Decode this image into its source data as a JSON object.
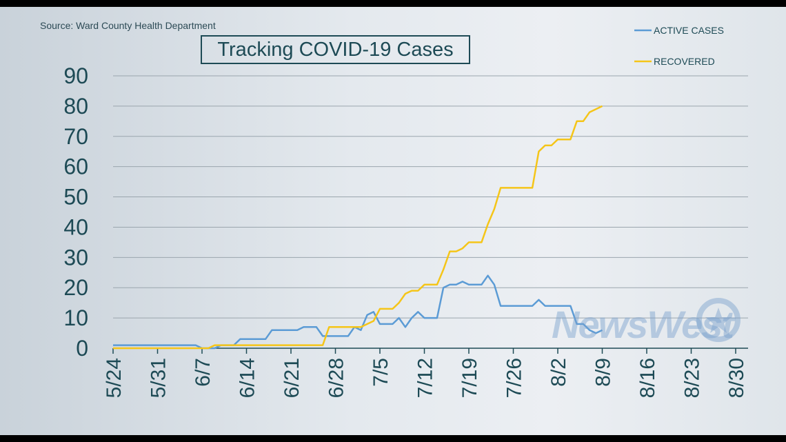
{
  "source": "Source: Ward County Health Department",
  "title": "Tracking COVID-19 Cases",
  "watermark": "NewsWest",
  "chart_data": {
    "type": "line",
    "title": "Tracking COVID-19 Cases",
    "xlabel": "",
    "ylabel": "",
    "ylim": [
      0,
      90
    ],
    "yticks": [
      0,
      10,
      20,
      30,
      40,
      50,
      60,
      70,
      80,
      90
    ],
    "xticks": [
      "5/24",
      "5/31",
      "6/7",
      "6/14",
      "6/21",
      "6/28",
      "7/5",
      "7/12",
      "7/19",
      "7/26",
      "8/2",
      "8/9",
      "8/16",
      "8/23",
      "8/30"
    ],
    "x_unit": "days since 5/24",
    "xlim": [
      0,
      98
    ],
    "grid": true,
    "legend_position": "top-right",
    "series": [
      {
        "name": "ACTIVE CASES",
        "color": "#5b9bd5",
        "points": [
          [
            0,
            1
          ],
          [
            13,
            1
          ],
          [
            14,
            0
          ],
          [
            16,
            0
          ],
          [
            17,
            1
          ],
          [
            19,
            1
          ],
          [
            20,
            3
          ],
          [
            24,
            3
          ],
          [
            25,
            6
          ],
          [
            29,
            6
          ],
          [
            30,
            7
          ],
          [
            32,
            7
          ],
          [
            33,
            4
          ],
          [
            37,
            4
          ],
          [
            38,
            7
          ],
          [
            39,
            6
          ],
          [
            40,
            11
          ],
          [
            41,
            12
          ],
          [
            42,
            8
          ],
          [
            44,
            8
          ],
          [
            45,
            10
          ],
          [
            46,
            7
          ],
          [
            47,
            10
          ],
          [
            48,
            12
          ],
          [
            49,
            10
          ],
          [
            51,
            10
          ],
          [
            52,
            20
          ],
          [
            53,
            21
          ],
          [
            54,
            21
          ],
          [
            55,
            22
          ],
          [
            56,
            21
          ],
          [
            58,
            21
          ],
          [
            59,
            24
          ],
          [
            60,
            21
          ],
          [
            61,
            14
          ],
          [
            66,
            14
          ],
          [
            67,
            16
          ],
          [
            68,
            14
          ],
          [
            72,
            14
          ],
          [
            73,
            8
          ],
          [
            74,
            8
          ],
          [
            75,
            6
          ],
          [
            76,
            5
          ],
          [
            77,
            6
          ]
        ]
      },
      {
        "name": "RECOVERED",
        "color": "#f5c518",
        "points": [
          [
            0,
            0
          ],
          [
            15,
            0
          ],
          [
            16,
            1
          ],
          [
            33,
            1
          ],
          [
            34,
            7
          ],
          [
            39,
            7
          ],
          [
            40,
            8
          ],
          [
            41,
            9
          ],
          [
            42,
            13
          ],
          [
            44,
            13
          ],
          [
            45,
            15
          ],
          [
            46,
            18
          ],
          [
            47,
            19
          ],
          [
            48,
            19
          ],
          [
            49,
            21
          ],
          [
            51,
            21
          ],
          [
            52,
            26
          ],
          [
            53,
            32
          ],
          [
            54,
            32
          ],
          [
            55,
            33
          ],
          [
            56,
            35
          ],
          [
            58,
            35
          ],
          [
            59,
            41
          ],
          [
            60,
            46
          ],
          [
            61,
            53
          ],
          [
            66,
            53
          ],
          [
            67,
            65
          ],
          [
            68,
            67
          ],
          [
            69,
            67
          ],
          [
            70,
            69
          ],
          [
            72,
            69
          ],
          [
            73,
            75
          ],
          [
            74,
            75
          ],
          [
            75,
            78
          ],
          [
            77,
            80
          ]
        ]
      }
    ]
  }
}
